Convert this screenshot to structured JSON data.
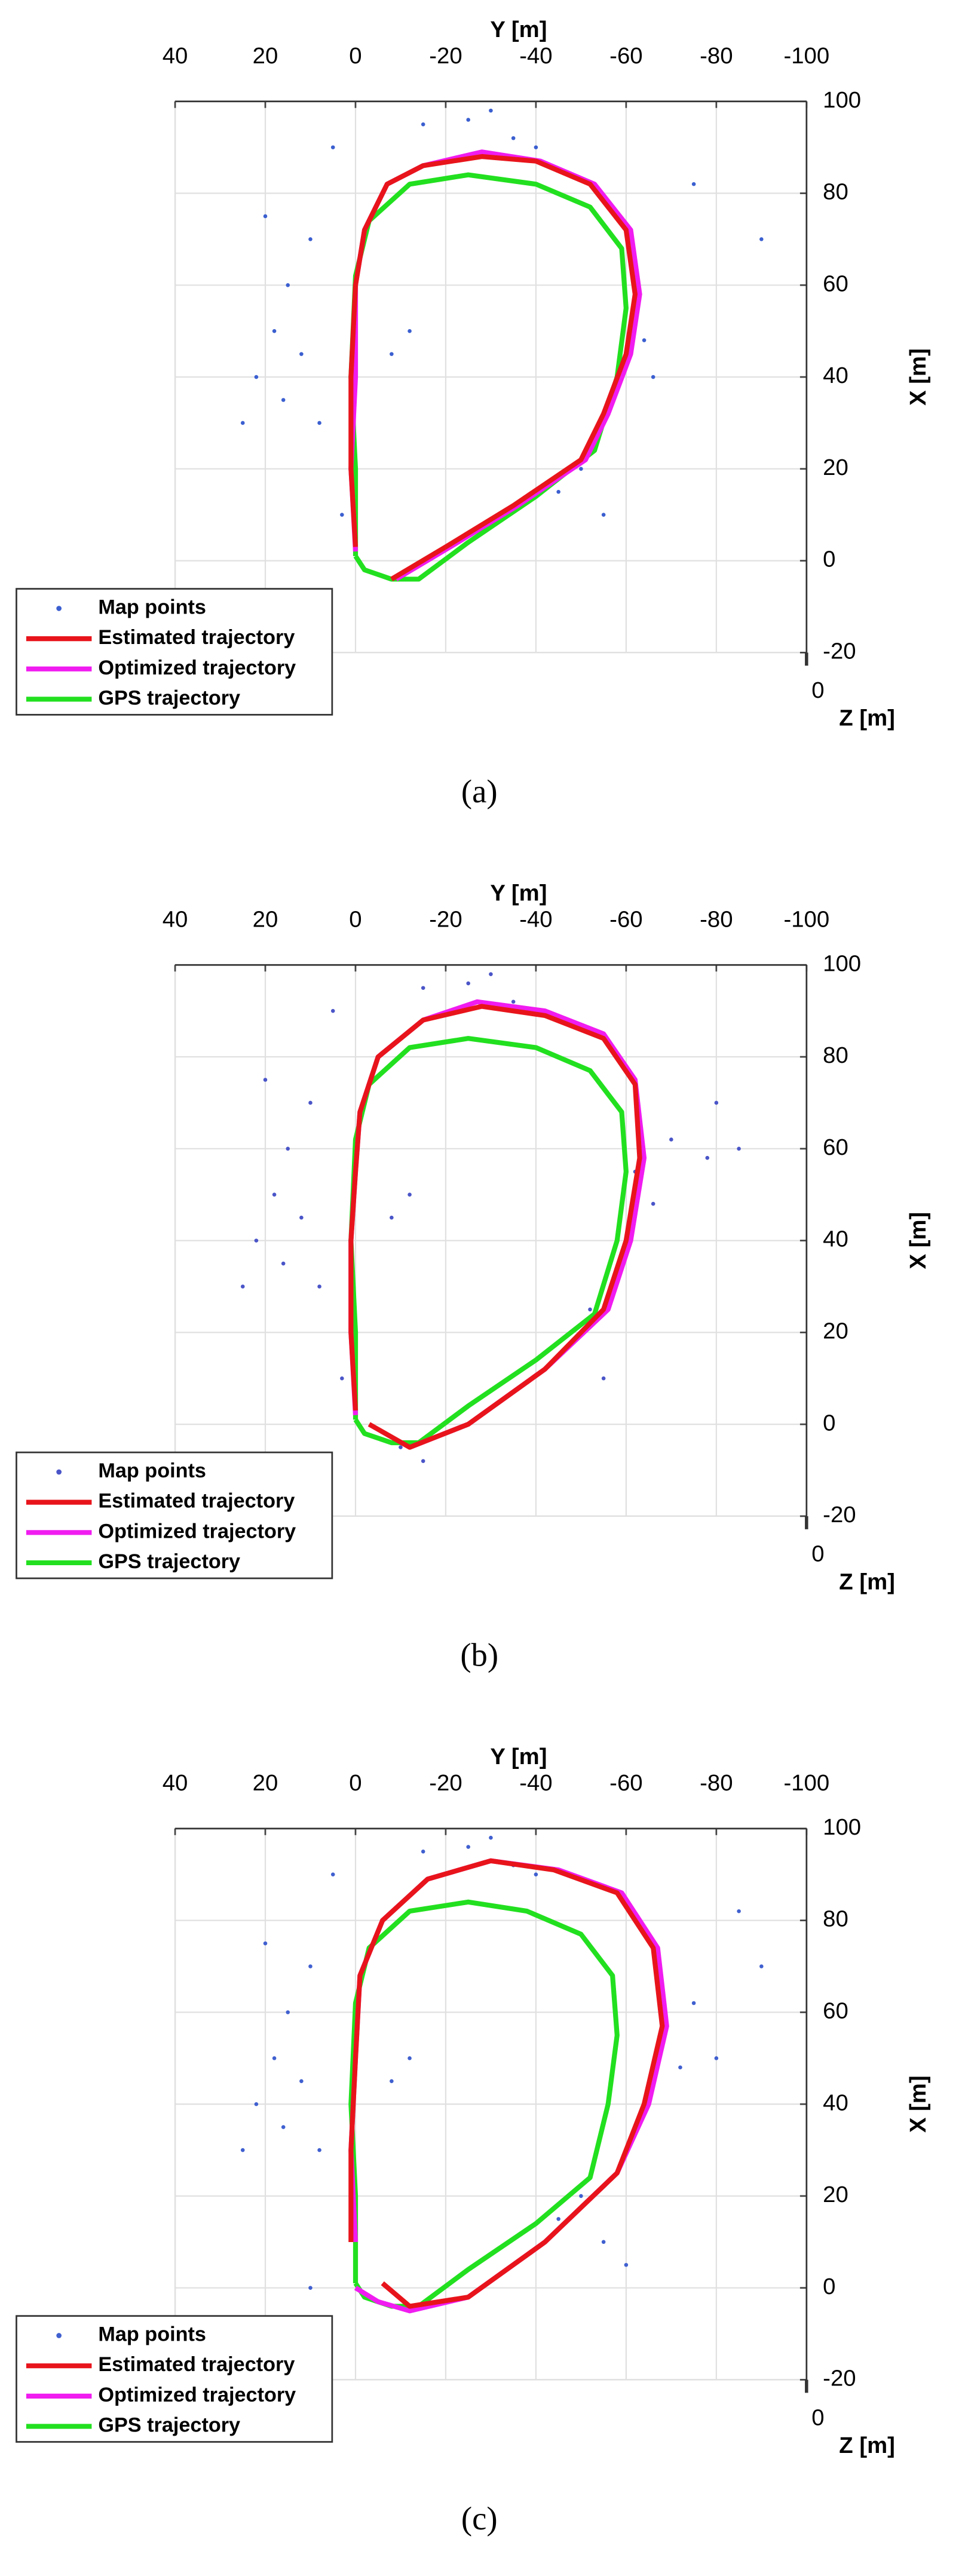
{
  "chart_data": [
    {
      "type": "line",
      "caption": "(a)",
      "xlabel": "Y [m]",
      "ylabel": "X [m]",
      "zlabel": "Z [m]",
      "xlim": [
        40,
        -100
      ],
      "ylim": [
        -20,
        100
      ],
      "xticks": [
        40,
        20,
        0,
        -20,
        -40,
        -60,
        -80,
        -100
      ],
      "yticks": [
        -20,
        0,
        20,
        40,
        60,
        80,
        100
      ],
      "zticks": [
        0
      ],
      "grid": true,
      "legend": "lower left",
      "series": [
        {
          "name": "Map points",
          "style": "markers",
          "color": "#3b5fd0",
          "x": [
            15,
            18,
            22,
            10,
            12,
            8,
            5,
            20,
            16,
            -15,
            -25,
            -35,
            -40,
            -30,
            -60,
            -64,
            -62,
            -66,
            -50,
            -45,
            -52,
            -55,
            -8,
            -12,
            -90,
            -75,
            3,
            25
          ],
          "values": [
            60,
            50,
            40,
            70,
            45,
            30,
            90,
            75,
            35,
            95,
            96,
            92,
            90,
            98,
            55,
            48,
            62,
            40,
            20,
            15,
            25,
            10,
            45,
            50,
            70,
            82,
            10,
            30
          ]
        },
        {
          "name": "Estimated trajectory",
          "style": "line",
          "color": "#e8141b",
          "x": [
            -8,
            -20,
            -35,
            -50,
            -55,
            -60,
            -62,
            -60,
            -52,
            -40,
            -28,
            -15,
            -7,
            -2,
            0,
            1,
            1,
            0
          ],
          "values": [
            -4,
            3,
            12,
            22,
            32,
            45,
            58,
            72,
            82,
            87,
            88,
            86,
            82,
            72,
            60,
            40,
            20,
            3
          ]
        },
        {
          "name": "Optimized trajectory",
          "style": "line",
          "color": "#f01cf0",
          "x": [
            -9,
            -21,
            -36,
            -51,
            -56,
            -61,
            -63,
            -61,
            -53,
            -41,
            -28,
            -15,
            -7,
            -2,
            0,
            0,
            1,
            0
          ],
          "values": [
            -4,
            3,
            12,
            22,
            32,
            45,
            58,
            72,
            82,
            87,
            89,
            86,
            82,
            72,
            60,
            40,
            20,
            2
          ]
        },
        {
          "name": "GPS trajectory",
          "style": "line",
          "color": "#22e01f",
          "x": [
            0,
            -2,
            -8,
            -14,
            -25,
            -40,
            -53,
            -58,
            -60,
            -59,
            -52,
            -40,
            -25,
            -12,
            -3,
            0,
            1,
            0,
            0
          ],
          "values": [
            1,
            -2,
            -4,
            -4,
            4,
            14,
            24,
            40,
            55,
            68,
            77,
            82,
            84,
            82,
            74,
            62,
            40,
            20,
            1
          ]
        }
      ]
    },
    {
      "type": "line",
      "caption": "(b)",
      "xlabel": "Y [m]",
      "ylabel": "X [m]",
      "zlabel": "Z [m]",
      "xlim": [
        40,
        -100
      ],
      "ylim": [
        -20,
        100
      ],
      "xticks": [
        40,
        20,
        0,
        -20,
        -40,
        -60,
        -80,
        -100
      ],
      "yticks": [
        -20,
        0,
        20,
        40,
        60,
        80,
        100
      ],
      "zticks": [
        0
      ],
      "grid": true,
      "legend": "lower left",
      "series": [
        {
          "name": "Map points",
          "style": "markers",
          "color": "#4a55c8",
          "x": [
            15,
            18,
            22,
            10,
            12,
            8,
            5,
            20,
            16,
            -15,
            -25,
            -35,
            -40,
            -30,
            -62,
            -66,
            -70,
            -78,
            -85,
            -80,
            -52,
            -55,
            -8,
            -12,
            -10,
            -15,
            3,
            25
          ],
          "values": [
            60,
            50,
            40,
            70,
            45,
            30,
            90,
            75,
            35,
            95,
            96,
            92,
            90,
            98,
            55,
            48,
            62,
            58,
            60,
            70,
            25,
            10,
            45,
            50,
            -5,
            -8,
            10,
            30
          ]
        },
        {
          "name": "Estimated trajectory",
          "style": "line",
          "color": "#e8141b",
          "x": [
            -3,
            -12,
            -25,
            -42,
            -55,
            -60,
            -63,
            -62,
            -55,
            -42,
            -28,
            -15,
            -5,
            -1,
            0,
            1,
            1,
            0
          ],
          "values": [
            0,
            -5,
            0,
            12,
            25,
            40,
            58,
            74,
            84,
            89,
            91,
            88,
            80,
            68,
            55,
            40,
            20,
            3
          ]
        },
        {
          "name": "Optimized trajectory",
          "style": "line",
          "color": "#f01cf0",
          "x": [
            -12,
            -25,
            -42,
            -56,
            -61,
            -64,
            -62,
            -55,
            -42,
            -27,
            -15,
            -5,
            -1,
            0,
            1,
            1,
            0
          ],
          "values": [
            -5,
            0,
            12,
            25,
            40,
            58,
            75,
            85,
            90,
            92,
            88,
            80,
            68,
            55,
            40,
            20,
            2
          ]
        },
        {
          "name": "GPS trajectory",
          "style": "line",
          "color": "#22e01f",
          "x": [
            0,
            -2,
            -8,
            -14,
            -25,
            -40,
            -53,
            -58,
            -60,
            -59,
            -52,
            -40,
            -25,
            -12,
            -3,
            0,
            1,
            0,
            0
          ],
          "values": [
            1,
            -2,
            -4,
            -4,
            4,
            14,
            24,
            40,
            55,
            68,
            77,
            82,
            84,
            82,
            74,
            62,
            40,
            20,
            1
          ]
        }
      ]
    },
    {
      "type": "line",
      "caption": "(c)",
      "xlabel": "Y [m]",
      "ylabel": "X [m]",
      "zlabel": "Z [m]",
      "xlim": [
        40,
        -100
      ],
      "ylim": [
        -20,
        100
      ],
      "xticks": [
        40,
        20,
        0,
        -20,
        -40,
        -60,
        -80,
        -100
      ],
      "yticks": [
        -20,
        0,
        20,
        40,
        60,
        80,
        100
      ],
      "zticks": [
        0
      ],
      "grid": true,
      "legend": "lower left",
      "series": [
        {
          "name": "Map points",
          "style": "markers",
          "color": "#4060d0",
          "x": [
            15,
            18,
            22,
            10,
            12,
            8,
            5,
            20,
            16,
            -15,
            -25,
            -35,
            -40,
            -30,
            -68,
            -72,
            -75,
            -80,
            -50,
            -45,
            -55,
            -60,
            -8,
            -12,
            -90,
            -85,
            10,
            25
          ],
          "values": [
            60,
            50,
            40,
            70,
            45,
            30,
            90,
            75,
            35,
            95,
            96,
            92,
            90,
            98,
            55,
            48,
            62,
            50,
            20,
            15,
            10,
            5,
            45,
            50,
            70,
            82,
            0,
            30
          ]
        },
        {
          "name": "Estimated trajectory",
          "style": "line",
          "color": "#e8141b",
          "x": [
            -6,
            -12,
            -25,
            -42,
            -58,
            -64,
            -68,
            -66,
            -58,
            -44,
            -30,
            -16,
            -6,
            -1,
            0,
            1,
            1
          ],
          "values": [
            1,
            -4,
            -2,
            10,
            25,
            40,
            57,
            74,
            86,
            91,
            93,
            89,
            80,
            68,
            50,
            30,
            10
          ]
        },
        {
          "name": "Optimized trajectory",
          "style": "line",
          "color": "#f01cf0",
          "x": [
            0,
            -5,
            -12,
            -25,
            -42,
            -58,
            -65,
            -69,
            -67,
            -59,
            -45,
            -30,
            -16,
            -6,
            -1,
            0,
            1,
            0
          ],
          "values": [
            0,
            -3,
            -5,
            -2,
            10,
            25,
            40,
            57,
            74,
            86,
            91,
            93,
            89,
            80,
            68,
            50,
            30,
            10
          ]
        },
        {
          "name": "GPS trajectory",
          "style": "line",
          "color": "#22e01f",
          "x": [
            0,
            -2,
            -8,
            -14,
            -25,
            -40,
            -52,
            -56,
            -58,
            -57,
            -50,
            -38,
            -25,
            -12,
            -3,
            0,
            1,
            0,
            0
          ],
          "values": [
            1,
            -2,
            -4,
            -4,
            4,
            14,
            24,
            40,
            55,
            68,
            77,
            82,
            84,
            82,
            74,
            62,
            40,
            20,
            1
          ]
        }
      ]
    }
  ]
}
